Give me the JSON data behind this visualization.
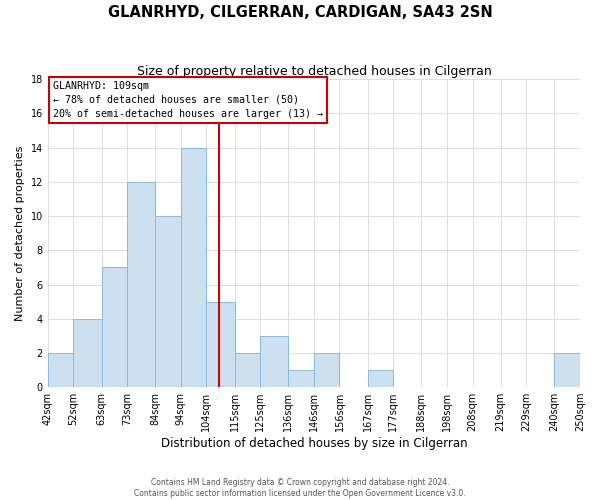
{
  "title": "GLANRHYD, CILGERRAN, CARDIGAN, SA43 2SN",
  "subtitle": "Size of property relative to detached houses in Cilgerran",
  "xlabel": "Distribution of detached houses by size in Cilgerran",
  "ylabel": "Number of detached properties",
  "footer_line1": "Contains HM Land Registry data © Crown copyright and database right 2024.",
  "footer_line2": "Contains public sector information licensed under the Open Government Licence v3.0.",
  "bin_labels": [
    "42sqm",
    "52sqm",
    "63sqm",
    "73sqm",
    "84sqm",
    "94sqm",
    "104sqm",
    "115sqm",
    "125sqm",
    "136sqm",
    "146sqm",
    "156sqm",
    "167sqm",
    "177sqm",
    "188sqm",
    "198sqm",
    "208sqm",
    "219sqm",
    "229sqm",
    "240sqm",
    "250sqm"
  ],
  "bin_edges": [
    42,
    52,
    63,
    73,
    84,
    94,
    104,
    115,
    125,
    136,
    146,
    156,
    167,
    177,
    188,
    198,
    208,
    219,
    229,
    240,
    250
  ],
  "counts": [
    2,
    4,
    7,
    12,
    10,
    14,
    5,
    2,
    3,
    1,
    2,
    0,
    1,
    0,
    0,
    0,
    0,
    0,
    0,
    2
  ],
  "bar_color": "#cce0f0",
  "bar_edge_color": "#88bbdd",
  "vline_x": 109,
  "vline_color": "#cc0000",
  "annotation_title": "GLANRHYD: 109sqm",
  "annotation_line1": "← 78% of detached houses are smaller (50)",
  "annotation_line2": "20% of semi-detached houses are larger (13) →",
  "annotation_box_facecolor": "#ffffff",
  "annotation_box_edgecolor": "#cc0000",
  "ylim": [
    0,
    18
  ],
  "yticks": [
    0,
    2,
    4,
    6,
    8,
    10,
    12,
    14,
    16,
    18
  ],
  "grid_color": "#dddddd",
  "bg_color": "#ffffff",
  "title_fontsize": 10.5,
  "subtitle_fontsize": 9,
  "ylabel_fontsize": 8,
  "xlabel_fontsize": 8.5,
  "tick_fontsize": 7,
  "footer_fontsize": 5.5
}
